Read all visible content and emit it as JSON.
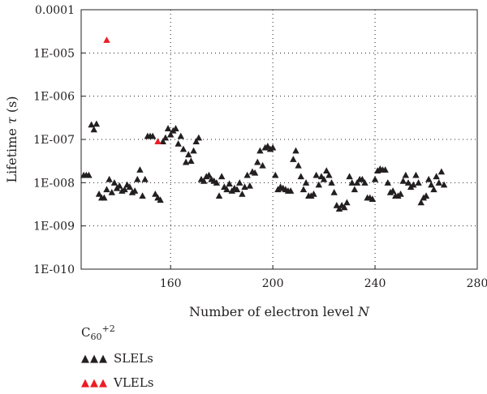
{
  "chart_data": {
    "type": "scatter",
    "xlabel": "Number of electron level",
    "xlabel_var": "N",
    "ylabel": "Lifetime",
    "ylabel_var": "τ",
    "ylabel_unit": "(s)",
    "x_range": [
      125,
      280
    ],
    "x_ticks": [
      160,
      200,
      240,
      280
    ],
    "y_scale": "log",
    "y_range": [
      1e-10,
      0.0001
    ],
    "y_ticks": [
      1e-10,
      1e-09,
      1e-08,
      1e-07,
      1e-06,
      1e-05,
      0.0001
    ],
    "y_tick_labels": [
      "1E-010",
      "1E-009",
      "1E-008",
      "1E-007",
      "1E-006",
      "1E-005",
      "0.0001"
    ],
    "grid": "dotted",
    "legend": {
      "position": "bottom-left",
      "title_base": "C",
      "title_sub": "60",
      "title_sup": "+2",
      "marker_text": "▲▲▲"
    },
    "series": [
      {
        "name": "SLELs",
        "color": "#231f20",
        "marker": "triangle",
        "points": [
          [
            126,
            1.5e-08
          ],
          [
            127,
            1.5e-08
          ],
          [
            128,
            1.5e-08
          ],
          [
            129,
            2.2e-07
          ],
          [
            130,
            1.7e-07
          ],
          [
            131,
            2.3e-07
          ],
          [
            132,
            5.5e-09
          ],
          [
            133,
            4.5e-09
          ],
          [
            134,
            4.5e-09
          ],
          [
            135,
            7e-09
          ],
          [
            136,
            1.2e-08
          ],
          [
            137,
            6e-09
          ],
          [
            138,
            1e-08
          ],
          [
            139,
            7.5e-09
          ],
          [
            140,
            8.5e-09
          ],
          [
            141,
            6.5e-09
          ],
          [
            142,
            7e-09
          ],
          [
            143,
            9e-09
          ],
          [
            144,
            8e-09
          ],
          [
            145,
            6e-09
          ],
          [
            146,
            6.5e-09
          ],
          [
            147,
            1.2e-08
          ],
          [
            148,
            2e-08
          ],
          [
            149,
            5e-09
          ],
          [
            150,
            1.2e-08
          ],
          [
            151,
            1.2e-07
          ],
          [
            152,
            1.2e-07
          ],
          [
            153,
            1.2e-07
          ],
          [
            154,
            5.5e-09
          ],
          [
            155,
            4.5e-09
          ],
          [
            156,
            4e-09
          ],
          [
            157,
            9e-08
          ],
          [
            158,
            1.1e-07
          ],
          [
            159,
            1.8e-07
          ],
          [
            160,
            1.3e-07
          ],
          [
            161,
            1.6e-07
          ],
          [
            162,
            1.8e-07
          ],
          [
            163,
            8e-08
          ],
          [
            164,
            1.2e-07
          ],
          [
            165,
            6e-08
          ],
          [
            166,
            3e-08
          ],
          [
            167,
            4.5e-08
          ],
          [
            168,
            3.2e-08
          ],
          [
            169,
            5.5e-08
          ],
          [
            170,
            9e-08
          ],
          [
            171,
            1.1e-07
          ],
          [
            172,
            1.2e-08
          ],
          [
            173,
            1.1e-08
          ],
          [
            174,
            1.4e-08
          ],
          [
            175,
            1.5e-08
          ],
          [
            176,
            1.2e-08
          ],
          [
            177,
            1.1e-08
          ],
          [
            178,
            1e-08
          ],
          [
            179,
            5e-09
          ],
          [
            180,
            1.4e-08
          ],
          [
            181,
            8e-09
          ],
          [
            182,
            7e-09
          ],
          [
            183,
            9.5e-09
          ],
          [
            184,
            6.5e-09
          ],
          [
            185,
            7.5e-09
          ],
          [
            186,
            7e-09
          ],
          [
            187,
            1e-08
          ],
          [
            188,
            5.5e-09
          ],
          [
            189,
            8e-09
          ],
          [
            190,
            1.5e-08
          ],
          [
            191,
            8.5e-09
          ],
          [
            192,
            1.8e-08
          ],
          [
            193,
            1.7e-08
          ],
          [
            194,
            3e-08
          ],
          [
            195,
            5.5e-08
          ],
          [
            196,
            2.5e-08
          ],
          [
            197,
            6.5e-08
          ],
          [
            198,
            7e-08
          ],
          [
            199,
            6e-08
          ],
          [
            200,
            6.5e-08
          ],
          [
            201,
            1.5e-08
          ],
          [
            202,
            7e-09
          ],
          [
            203,
            8e-09
          ],
          [
            204,
            7.5e-09
          ],
          [
            205,
            7e-09
          ],
          [
            206,
            6.5e-09
          ],
          [
            207,
            6.5e-09
          ],
          [
            208,
            3.5e-08
          ],
          [
            209,
            5.5e-08
          ],
          [
            210,
            2.5e-08
          ],
          [
            211,
            1.4e-08
          ],
          [
            212,
            7e-09
          ],
          [
            213,
            1e-08
          ],
          [
            214,
            5e-09
          ],
          [
            215,
            5e-09
          ],
          [
            216,
            5.5e-09
          ],
          [
            217,
            1.5e-08
          ],
          [
            218,
            9e-09
          ],
          [
            219,
            1.4e-08
          ],
          [
            220,
            1.2e-08
          ],
          [
            221,
            1.9e-08
          ],
          [
            222,
            1.5e-08
          ],
          [
            223,
            1e-08
          ],
          [
            224,
            6e-09
          ],
          [
            225,
            3e-09
          ],
          [
            226,
            2.5e-09
          ],
          [
            227,
            3e-09
          ],
          [
            228,
            2.7e-09
          ],
          [
            229,
            3.5e-09
          ],
          [
            230,
            1.4e-08
          ],
          [
            231,
            1e-08
          ],
          [
            232,
            7e-09
          ],
          [
            233,
            1e-08
          ],
          [
            234,
            1.2e-08
          ],
          [
            235,
            1.2e-08
          ],
          [
            236,
            1e-08
          ],
          [
            237,
            4.5e-09
          ],
          [
            238,
            4.5e-09
          ],
          [
            239,
            4.2e-09
          ],
          [
            240,
            1.2e-08
          ],
          [
            241,
            1.9e-08
          ],
          [
            242,
            2.1e-08
          ],
          [
            243,
            2e-08
          ],
          [
            244,
            2e-08
          ],
          [
            245,
            1e-08
          ],
          [
            246,
            6e-09
          ],
          [
            247,
            6.5e-09
          ],
          [
            248,
            5e-09
          ],
          [
            249,
            5e-09
          ],
          [
            250,
            5.5e-09
          ],
          [
            251,
            1.1e-08
          ],
          [
            252,
            1.5e-08
          ],
          [
            253,
            1e-08
          ],
          [
            254,
            8e-09
          ],
          [
            255,
            9e-09
          ],
          [
            256,
            1.5e-08
          ],
          [
            257,
            1e-08
          ],
          [
            258,
            3.5e-09
          ],
          [
            259,
            4.5e-09
          ],
          [
            260,
            5e-09
          ],
          [
            261,
            1.2e-08
          ],
          [
            262,
            9e-09
          ],
          [
            263,
            7e-09
          ],
          [
            264,
            1.4e-08
          ],
          [
            265,
            1e-08
          ],
          [
            266,
            1.8e-08
          ],
          [
            267,
            9e-09
          ]
        ]
      },
      {
        "name": "VLELs",
        "color": "#ed1c24",
        "marker": "triangle",
        "points": [
          [
            135,
            2e-05
          ],
          [
            155,
            9e-08
          ]
        ]
      }
    ]
  }
}
